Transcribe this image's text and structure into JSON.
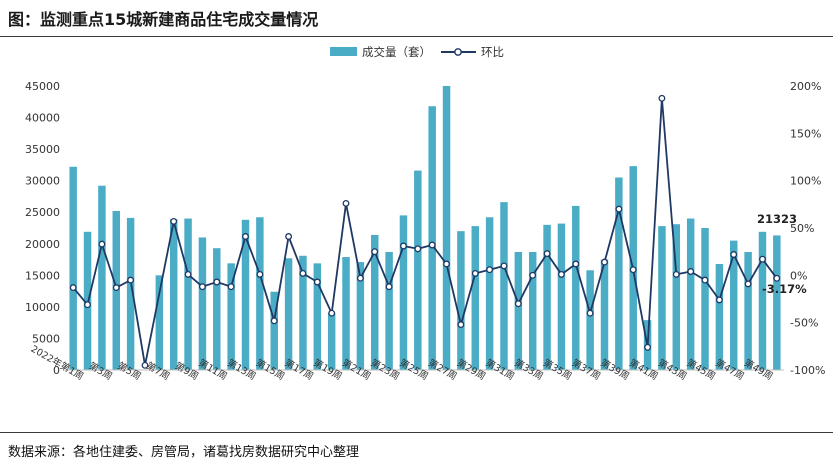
{
  "header": {
    "title": "图：监测重点15城新建商品住宅成交量情况"
  },
  "footer": {
    "source": "数据来源：各地住建委、房管局，诸葛找房数据研究中心整理"
  },
  "chart_data": {
    "type": "bar",
    "title": "图：监测重点15城新建商品住宅成交量情况",
    "legend": {
      "position": "top",
      "entries": [
        "成交量（套）",
        "环比"
      ]
    },
    "colors": {
      "bar": "#4BACC6",
      "line": "#1F3864",
      "marker_fill": "#ffffff"
    },
    "ylim_left": [
      0,
      45000
    ],
    "yticks_left": [
      0,
      5000,
      10000,
      15000,
      20000,
      25000,
      30000,
      35000,
      40000,
      45000
    ],
    "ylim_right": [
      -100,
      200
    ],
    "yticks_right": [
      "-100%",
      "-50%",
      "0%",
      "50%",
      "100%",
      "150%",
      "200%"
    ],
    "xtick_labels": [
      {
        "index": 0,
        "label": "2022年第1周"
      },
      {
        "index": 2,
        "label": "第3周"
      },
      {
        "index": 4,
        "label": "第5周"
      },
      {
        "index": 6,
        "label": "第7周"
      },
      {
        "index": 8,
        "label": "第9周"
      },
      {
        "index": 10,
        "label": "第11周"
      },
      {
        "index": 12,
        "label": "第13周"
      },
      {
        "index": 14,
        "label": "第15周"
      },
      {
        "index": 16,
        "label": "第17周"
      },
      {
        "index": 18,
        "label": "第19周"
      },
      {
        "index": 20,
        "label": "第21周"
      },
      {
        "index": 22,
        "label": "第23周"
      },
      {
        "index": 24,
        "label": "第25周"
      },
      {
        "index": 26,
        "label": "第27周"
      },
      {
        "index": 28,
        "label": "第29周"
      },
      {
        "index": 30,
        "label": "第31周"
      },
      {
        "index": 32,
        "label": "第33周"
      },
      {
        "index": 34,
        "label": "第35周"
      },
      {
        "index": 36,
        "label": "第37周"
      },
      {
        "index": 38,
        "label": "第39周"
      },
      {
        "index": 40,
        "label": "第41周"
      },
      {
        "index": 42,
        "label": "第43周"
      },
      {
        "index": 44,
        "label": "第45周"
      },
      {
        "index": 46,
        "label": "第47周"
      },
      {
        "index": 48,
        "label": "第49周"
      }
    ],
    "series": [
      {
        "name": "成交量（套）",
        "axis": "left",
        "type": "bar",
        "values": [
          32200,
          21900,
          29200,
          25200,
          24100,
          0,
          15000,
          23900,
          24000,
          21000,
          19300,
          16900,
          23800,
          24200,
          12400,
          17700,
          18100,
          16900,
          9000,
          17900,
          17100,
          21400,
          18700,
          24500,
          31600,
          41800,
          45000,
          22000,
          22800,
          24200,
          26600,
          18700,
          18700,
          23000,
          23200,
          26000,
          15800,
          17500,
          30500,
          32300,
          7900,
          22800,
          23100,
          24000,
          22500,
          16800,
          20500,
          18700,
          21900,
          21323
        ]
      },
      {
        "name": "环比",
        "axis": "right",
        "type": "line",
        "values": [
          -13,
          -31,
          33,
          -13,
          -5,
          -95,
          null,
          57,
          1,
          -12,
          -7,
          -12,
          41,
          1,
          -48,
          41,
          2,
          -7,
          -40,
          76,
          -3,
          25,
          -12,
          31,
          28,
          32,
          12,
          -52,
          2,
          6,
          10,
          -30,
          0,
          23,
          1,
          12,
          -40,
          14,
          70,
          6,
          -76,
          187,
          1,
          4,
          -5,
          -26,
          22,
          -9,
          17,
          -3.17
        ]
      }
    ],
    "annotations": {
      "last_bar_value": "21323",
      "last_line_value": "-3.17%"
    }
  }
}
